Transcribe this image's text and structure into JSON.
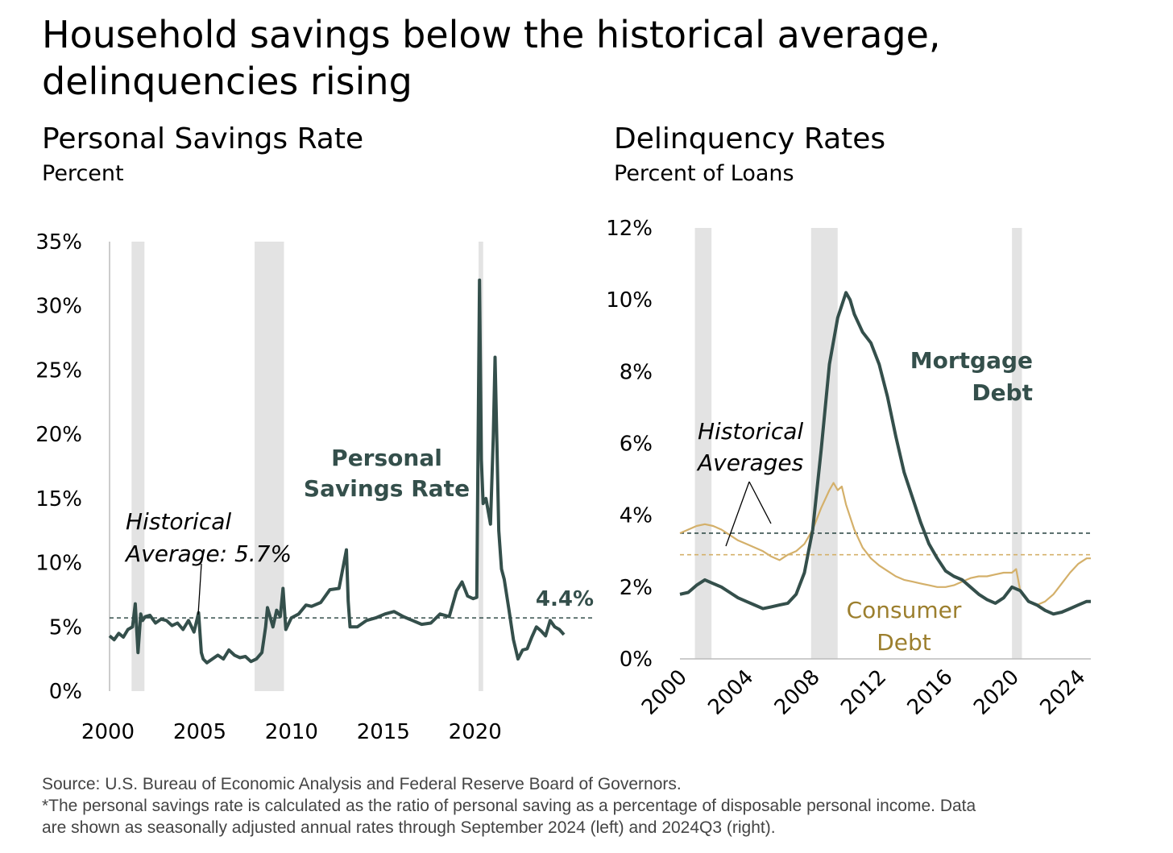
{
  "title": "Household savings below the historical average, delinquencies rising",
  "footer": {
    "source": "Source: U.S. Bureau of Economic Analysis and Federal Reserve Board of Governors.",
    "note_line1": "*The personal savings rate is calculated as the ratio of personal saving as a percentage of disposable personal income. Data",
    "note_line2": "are shown as seasonally adjusted annual rates through September 2024 (left) and 2024Q3 (right)."
  },
  "colors": {
    "dark_teal": "#344F4B",
    "gold": "#D4B06A",
    "gold_text": "#9C7F2E",
    "recession": "#E3E3E3"
  },
  "chart_data": [
    {
      "type": "line",
      "title": "Personal Savings Rate",
      "subtitle": "Percent",
      "x_range": [
        2000,
        2024.75
      ],
      "ylim": [
        0,
        35
      ],
      "y_ticks": [
        "0%",
        "5%",
        "10%",
        "15%",
        "20%",
        "25%",
        "30%",
        "35%"
      ],
      "y_tick_values": [
        0,
        5,
        10,
        15,
        20,
        25,
        30,
        35
      ],
      "x_ticks": [
        "2000",
        "2005",
        "2010",
        "2015",
        "2020"
      ],
      "x_tick_values": [
        2000,
        2005,
        2010,
        2015,
        2020
      ],
      "recessions": [
        [
          2001.2,
          2001.9
        ],
        [
          2007.9,
          2009.5
        ],
        [
          2020.1,
          2020.35
        ]
      ],
      "series": [
        {
          "name": "Personal Savings Rate",
          "x": [
            2000.0,
            2000.25,
            2000.5,
            2000.75,
            2001.0,
            2001.25,
            2001.4,
            2001.55,
            2001.7,
            2001.8,
            2001.95,
            2002.2,
            2002.5,
            2002.8,
            2003.1,
            2003.4,
            2003.7,
            2004.0,
            2004.3,
            2004.6,
            2004.85,
            2005.0,
            2005.1,
            2005.3,
            2005.6,
            2005.9,
            2006.2,
            2006.5,
            2006.8,
            2007.1,
            2007.4,
            2007.7,
            2008.0,
            2008.3,
            2008.5,
            2008.6,
            2008.9,
            2009.1,
            2009.3,
            2009.45,
            2009.6,
            2009.9,
            2010.3,
            2010.7,
            2011.0,
            2011.5,
            2012.0,
            2012.5,
            2012.9,
            2013.0,
            2013.1,
            2013.5,
            2014.0,
            2014.5,
            2015.0,
            2015.5,
            2016.0,
            2016.5,
            2017.0,
            2017.5,
            2018.0,
            2018.5,
            2018.9,
            2019.2,
            2019.5,
            2019.8,
            2020.0,
            2020.15,
            2020.25,
            2020.35,
            2020.5,
            2020.75,
            2020.9,
            2021.0,
            2021.2,
            2021.35,
            2021.5,
            2021.75,
            2022.0,
            2022.25,
            2022.5,
            2022.75,
            2023.0,
            2023.25,
            2023.5,
            2023.75,
            2024.0,
            2024.25,
            2024.5,
            2024.75
          ],
          "values": [
            4.3,
            4.0,
            4.5,
            4.2,
            4.8,
            5.0,
            6.8,
            3.0,
            6.0,
            5.5,
            5.8,
            5.9,
            5.3,
            5.6,
            5.5,
            5.1,
            5.3,
            4.8,
            5.5,
            4.6,
            6.1,
            3.0,
            2.5,
            2.2,
            2.5,
            2.8,
            2.5,
            3.2,
            2.8,
            2.6,
            2.7,
            2.3,
            2.5,
            3.0,
            5.0,
            6.5,
            5.0,
            6.3,
            5.8,
            8.0,
            4.8,
            5.7,
            6.0,
            6.7,
            6.6,
            6.9,
            7.9,
            8.0,
            11.0,
            7.0,
            5.0,
            5.0,
            5.5,
            5.7,
            6.0,
            6.2,
            5.8,
            5.5,
            5.2,
            5.3,
            6.0,
            5.8,
            7.8,
            8.5,
            7.4,
            7.2,
            7.3,
            32.0,
            18.0,
            14.6,
            15.0,
            13.0,
            19.8,
            26.0,
            12.5,
            9.5,
            8.7,
            6.4,
            4.0,
            2.5,
            3.2,
            3.3,
            4.2,
            5.0,
            4.7,
            4.3,
            5.5,
            5.0,
            4.8,
            4.4
          ]
        }
      ],
      "historical_average": 5.7,
      "annotations": {
        "series_label_line1": "Personal",
        "series_label_line2": "Savings Rate",
        "avg_label_line1": "Historical",
        "avg_label_line2": "Average: 5.7%",
        "end_label": "4.4%"
      }
    },
    {
      "type": "line",
      "title": "Delinquency Rates",
      "subtitle": "Percent of Loans",
      "x_range": [
        2000,
        2024.75
      ],
      "ylim": [
        0,
        12
      ],
      "y_ticks": [
        "0%",
        "2%",
        "4%",
        "6%",
        "8%",
        "10%",
        "12%"
      ],
      "y_tick_values": [
        0,
        2,
        4,
        6,
        8,
        10,
        12
      ],
      "x_ticks": [
        "2000",
        "2004",
        "2008",
        "2012",
        "2016",
        "2020",
        "2024"
      ],
      "x_tick_values": [
        2000,
        2004,
        2008,
        2012,
        2016,
        2020,
        2024
      ],
      "recessions": [
        [
          2000.9,
          2001.9
        ],
        [
          2007.9,
          2009.5
        ],
        [
          2020.0,
          2020.6
        ]
      ],
      "series": [
        {
          "name": "Mortgage Debt",
          "x": [
            2000.0,
            2000.5,
            2001.0,
            2001.5,
            2002.0,
            2002.5,
            2003.0,
            2003.5,
            2004.0,
            2004.5,
            2005.0,
            2005.5,
            2006.0,
            2006.5,
            2007.0,
            2007.5,
            2008.0,
            2008.5,
            2009.0,
            2009.5,
            2010.0,
            2010.25,
            2010.5,
            2011.0,
            2011.5,
            2012.0,
            2012.5,
            2013.0,
            2013.5,
            2014.0,
            2014.5,
            2015.0,
            2015.5,
            2016.0,
            2016.5,
            2017.0,
            2017.5,
            2018.0,
            2018.5,
            2019.0,
            2019.5,
            2020.0,
            2020.5,
            2021.0,
            2021.5,
            2022.0,
            2022.5,
            2023.0,
            2023.5,
            2024.0,
            2024.5,
            2024.75
          ],
          "values": [
            1.8,
            1.85,
            2.05,
            2.2,
            2.1,
            2.0,
            1.85,
            1.7,
            1.6,
            1.5,
            1.4,
            1.45,
            1.5,
            1.55,
            1.8,
            2.4,
            3.6,
            5.8,
            8.2,
            9.5,
            10.2,
            10.0,
            9.6,
            9.1,
            8.8,
            8.2,
            7.3,
            6.2,
            5.2,
            4.5,
            3.8,
            3.2,
            2.8,
            2.45,
            2.3,
            2.2,
            2.0,
            1.8,
            1.65,
            1.55,
            1.7,
            2.0,
            1.9,
            1.6,
            1.5,
            1.35,
            1.25,
            1.3,
            1.4,
            1.5,
            1.6,
            1.6
          ]
        },
        {
          "name": "Consumer Debt",
          "x": [
            2000.0,
            2000.5,
            2001.0,
            2001.5,
            2002.0,
            2002.5,
            2003.0,
            2003.5,
            2004.0,
            2004.5,
            2005.0,
            2005.5,
            2006.0,
            2006.5,
            2007.0,
            2007.5,
            2008.0,
            2008.5,
            2009.0,
            2009.25,
            2009.5,
            2009.75,
            2010.0,
            2010.5,
            2011.0,
            2011.5,
            2012.0,
            2012.5,
            2013.0,
            2013.5,
            2014.0,
            2014.5,
            2015.0,
            2015.5,
            2016.0,
            2016.5,
            2017.0,
            2017.5,
            2018.0,
            2018.5,
            2019.0,
            2019.5,
            2020.0,
            2020.25,
            2020.5,
            2021.0,
            2021.5,
            2022.0,
            2022.5,
            2023.0,
            2023.5,
            2024.0,
            2024.5,
            2024.75
          ],
          "values": [
            3.5,
            3.6,
            3.7,
            3.75,
            3.7,
            3.6,
            3.45,
            3.3,
            3.2,
            3.1,
            3.0,
            2.85,
            2.75,
            2.9,
            3.0,
            3.2,
            3.6,
            4.2,
            4.7,
            4.9,
            4.7,
            4.8,
            4.3,
            3.6,
            3.1,
            2.8,
            2.6,
            2.45,
            2.3,
            2.2,
            2.15,
            2.1,
            2.05,
            2.0,
            2.0,
            2.05,
            2.15,
            2.25,
            2.3,
            2.3,
            2.35,
            2.4,
            2.4,
            2.5,
            1.9,
            1.6,
            1.5,
            1.6,
            1.8,
            2.1,
            2.4,
            2.65,
            2.8,
            2.8
          ]
        }
      ],
      "historical_averages": {
        "Mortgage Debt": 3.5,
        "Consumer Debt": 2.9
      },
      "annotations": {
        "avg_label_line1": "Historical",
        "avg_label_line2": "Averages",
        "mortgage_line1": "Mortgage",
        "mortgage_line2": "Debt",
        "consumer_line1": "Consumer",
        "consumer_line2": "Debt"
      }
    }
  ]
}
